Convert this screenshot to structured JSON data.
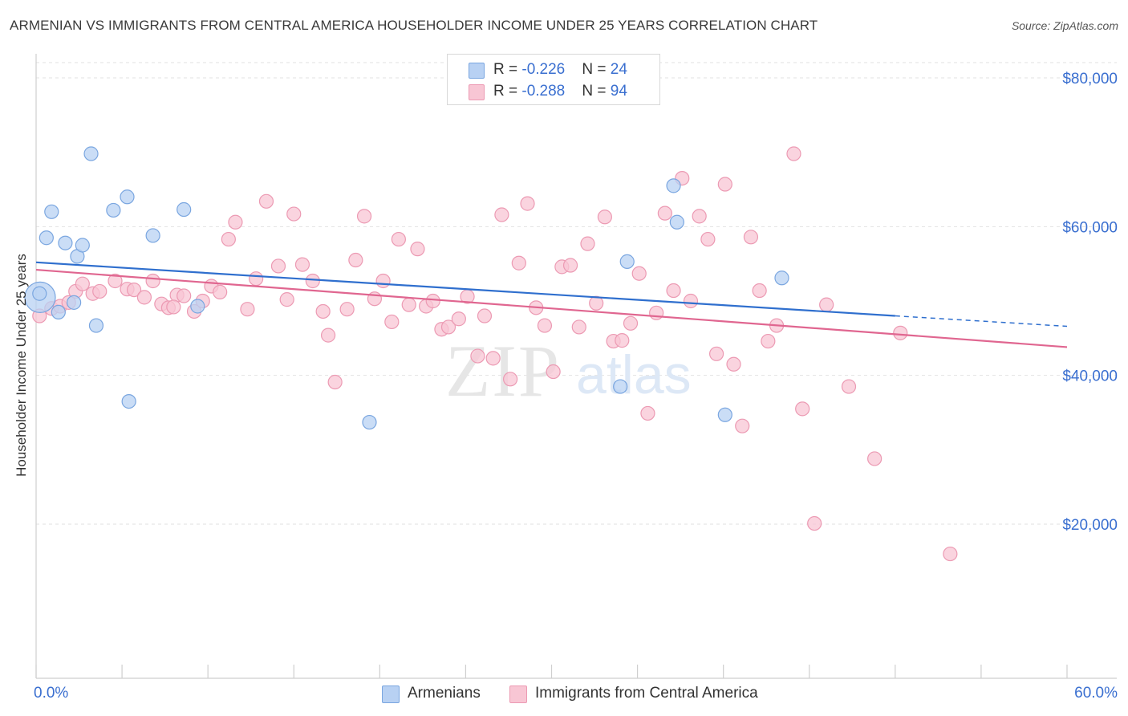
{
  "title": "ARMENIAN VS IMMIGRANTS FROM CENTRAL AMERICA HOUSEHOLDER INCOME UNDER 25 YEARS CORRELATION CHART",
  "source": "Source: ZipAtlas.com",
  "watermark": {
    "zip": "ZIP",
    "atlas": "atlas"
  },
  "colors": {
    "armenians_fill": "#b8d1f3",
    "armenians_stroke": "#7aa6e0",
    "armenians_line": "#2f6fce",
    "central_fill": "#f8c6d4",
    "central_stroke": "#ec9ab3",
    "central_line": "#e06690",
    "axis_text": "#3a6fd0"
  },
  "legend": {
    "rows": [
      {
        "r_label": "R = ",
        "r_value": "-0.226",
        "n_label": "N = ",
        "n_value": "24"
      },
      {
        "r_label": "R = ",
        "r_value": "-0.288",
        "n_label": "N = ",
        "n_value": "94"
      }
    ]
  },
  "bottom_legend": [
    "Armenians",
    "Immigrants from Central America"
  ],
  "chart_data": {
    "type": "scatter",
    "title": "ARMENIAN VS IMMIGRANTS FROM CENTRAL AMERICA HOUSEHOLDER INCOME UNDER 25 YEARS CORRELATION CHART",
    "xlabel": "",
    "ylabel": "Householder Income Under 25 years",
    "xlim": [
      0,
      60
    ],
    "ylim": [
      0,
      82000
    ],
    "x_tick_labels": [
      "0.0%",
      "60.0%"
    ],
    "y_ticks": [
      20000,
      40000,
      60000,
      80000
    ],
    "y_tick_labels": [
      "$20,000",
      "$40,000",
      "$60,000",
      "$80,000"
    ],
    "grid": true,
    "legend_position": "top-center",
    "series": [
      {
        "name": "Armenians",
        "r": -0.226,
        "n": 24,
        "trend": {
          "x0": 0,
          "y0": 55200,
          "x1": 50,
          "y1": 48000,
          "dash_to_x": 60,
          "dash_to_y": 46600
        },
        "points": [
          [
            0.0,
            50500
          ],
          [
            0.6,
            58500
          ],
          [
            0.9,
            62000
          ],
          [
            1.3,
            48500
          ],
          [
            1.7,
            57800
          ],
          [
            2.2,
            49800
          ],
          [
            2.4,
            56000
          ],
          [
            2.7,
            57500
          ],
          [
            3.2,
            69800
          ],
          [
            3.5,
            46700
          ],
          [
            4.5,
            62200
          ],
          [
            5.3,
            64000
          ],
          [
            5.4,
            36500
          ],
          [
            6.8,
            58800
          ],
          [
            8.6,
            62300
          ],
          [
            9.4,
            49300
          ],
          [
            19.4,
            33700
          ],
          [
            34.0,
            38500
          ],
          [
            34.4,
            55300
          ],
          [
            37.1,
            65500
          ],
          [
            37.3,
            60600
          ],
          [
            40.1,
            34700
          ],
          [
            43.4,
            53100
          ],
          [
            0.2,
            51000
          ]
        ]
      },
      {
        "name": "Immigrants from Central America",
        "r": -0.288,
        "n": 94,
        "trend": {
          "x0": 0,
          "y0": 54200,
          "x1": 60,
          "y1": 43800
        },
        "points": [
          [
            0.2,
            48000
          ],
          [
            0.9,
            49000
          ],
          [
            1.4,
            49300
          ],
          [
            1.9,
            49800
          ],
          [
            2.3,
            51300
          ],
          [
            2.7,
            52300
          ],
          [
            3.3,
            51000
          ],
          [
            3.7,
            51300
          ],
          [
            4.6,
            52700
          ],
          [
            5.3,
            51600
          ],
          [
            5.7,
            51500
          ],
          [
            6.3,
            50500
          ],
          [
            6.8,
            52700
          ],
          [
            7.3,
            49600
          ],
          [
            7.7,
            49100
          ],
          [
            8.2,
            50800
          ],
          [
            8.6,
            50700
          ],
          [
            9.2,
            48600
          ],
          [
            9.7,
            50000
          ],
          [
            10.2,
            52000
          ],
          [
            10.7,
            51200
          ],
          [
            11.2,
            58300
          ],
          [
            11.6,
            60600
          ],
          [
            12.3,
            48900
          ],
          [
            12.8,
            53000
          ],
          [
            13.4,
            63400
          ],
          [
            14.1,
            54700
          ],
          [
            14.6,
            50200
          ],
          [
            15.0,
            61700
          ],
          [
            15.5,
            54900
          ],
          [
            16.1,
            52700
          ],
          [
            16.7,
            48600
          ],
          [
            17.0,
            45400
          ],
          [
            17.4,
            39100
          ],
          [
            18.1,
            48900
          ],
          [
            18.6,
            55500
          ],
          [
            19.1,
            61400
          ],
          [
            19.7,
            50300
          ],
          [
            20.2,
            52700
          ],
          [
            20.7,
            47200
          ],
          [
            21.1,
            58300
          ],
          [
            21.7,
            49500
          ],
          [
            22.2,
            57000
          ],
          [
            22.7,
            49300
          ],
          [
            23.1,
            50000
          ],
          [
            23.6,
            46200
          ],
          [
            24.0,
            46500
          ],
          [
            24.6,
            47600
          ],
          [
            25.1,
            50600
          ],
          [
            25.7,
            42600
          ],
          [
            26.1,
            48000
          ],
          [
            26.6,
            42300
          ],
          [
            27.1,
            61600
          ],
          [
            27.6,
            39500
          ],
          [
            28.1,
            55100
          ],
          [
            28.6,
            63100
          ],
          [
            29.1,
            49100
          ],
          [
            29.6,
            46700
          ],
          [
            30.1,
            40500
          ],
          [
            30.6,
            54600
          ],
          [
            31.1,
            54800
          ],
          [
            31.6,
            46500
          ],
          [
            32.1,
            57700
          ],
          [
            32.6,
            49700
          ],
          [
            33.1,
            61300
          ],
          [
            33.6,
            44600
          ],
          [
            34.1,
            44700
          ],
          [
            34.6,
            47000
          ],
          [
            35.1,
            53700
          ],
          [
            35.6,
            34900
          ],
          [
            36.1,
            48400
          ],
          [
            36.6,
            61800
          ],
          [
            37.1,
            51400
          ],
          [
            37.6,
            66500
          ],
          [
            38.1,
            50000
          ],
          [
            38.6,
            61400
          ],
          [
            39.1,
            58300
          ],
          [
            39.6,
            42900
          ],
          [
            40.1,
            65700
          ],
          [
            40.6,
            41500
          ],
          [
            41.1,
            33200
          ],
          [
            41.6,
            58600
          ],
          [
            42.1,
            51400
          ],
          [
            42.6,
            44600
          ],
          [
            43.1,
            46700
          ],
          [
            44.1,
            69800
          ],
          [
            44.6,
            35500
          ],
          [
            45.3,
            20100
          ],
          [
            46.0,
            49500
          ],
          [
            47.3,
            38500
          ],
          [
            48.8,
            28800
          ],
          [
            50.3,
            45700
          ],
          [
            53.2,
            16000
          ],
          [
            8.0,
            49200
          ]
        ]
      }
    ]
  }
}
